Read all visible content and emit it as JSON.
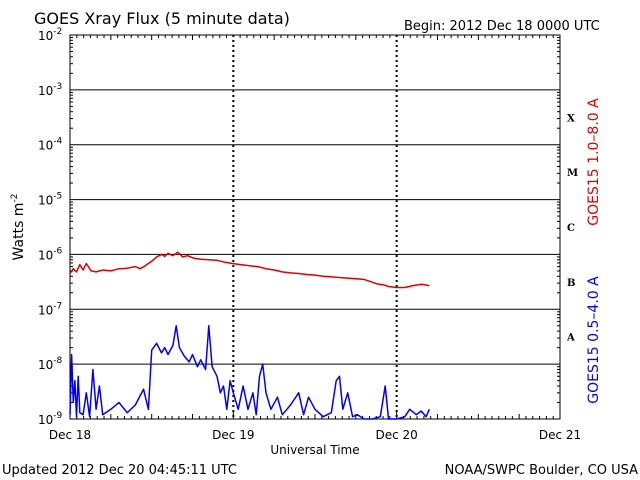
{
  "header": {
    "title": "GOES Xray Flux (5 minute data)",
    "begin": "Begin:  2012 Dec 18 0000 UTC"
  },
  "footer": {
    "updated": "Updated 2012 Dec 20 04:45:11 UTC",
    "credit": "NOAA/SWPC Boulder, CO USA"
  },
  "chart_data": {
    "type": "line",
    "title": "GOES Xray Flux (5 minute data)",
    "xlabel": "Universal Time",
    "ylabel": "Watts m",
    "ylabel_sup": "-2",
    "y_scale": "log",
    "ylim": [
      1e-09,
      0.01
    ],
    "y_ticks": [
      {
        "base": "10",
        "exp": "-2"
      },
      {
        "base": "10",
        "exp": "-3"
      },
      {
        "base": "10",
        "exp": "-4"
      },
      {
        "base": "10",
        "exp": "-5"
      },
      {
        "base": "10",
        "exp": "-6"
      },
      {
        "base": "10",
        "exp": "-7"
      },
      {
        "base": "10",
        "exp": "-8"
      },
      {
        "base": "10",
        "exp": "-9"
      }
    ],
    "x_ticks": [
      "Dec 18",
      "Dec 19",
      "Dec 20",
      "Dec 21"
    ],
    "xlim_days": [
      0,
      3
    ],
    "flare_classes": [
      "X",
      "M",
      "C",
      "B",
      "A"
    ],
    "grid": true,
    "colors": {
      "long": "#e00000",
      "short": "#0000ff",
      "axis": "#000000"
    },
    "series": [
      {
        "name": "GOES15 1.0–8.0 A",
        "color": "#e00000",
        "points": [
          [
            0.0,
            4.5e-07
          ],
          [
            0.02,
            5.5e-07
          ],
          [
            0.04,
            4.8e-07
          ],
          [
            0.06,
            6.5e-07
          ],
          [
            0.08,
            5.2e-07
          ],
          [
            0.1,
            6.8e-07
          ],
          [
            0.13,
            5e-07
          ],
          [
            0.16,
            4.8e-07
          ],
          [
            0.2,
            5.2e-07
          ],
          [
            0.25,
            5e-07
          ],
          [
            0.3,
            5.5e-07
          ],
          [
            0.35,
            5.6e-07
          ],
          [
            0.4,
            6e-07
          ],
          [
            0.43,
            5.5e-07
          ],
          [
            0.46,
            6.2e-07
          ],
          [
            0.5,
            7.5e-07
          ],
          [
            0.53,
            9e-07
          ],
          [
            0.56,
            1e-06
          ],
          [
            0.58,
            9.2e-07
          ],
          [
            0.6,
            1.05e-06
          ],
          [
            0.63,
            9.5e-07
          ],
          [
            0.66,
            1.1e-06
          ],
          [
            0.69,
            9e-07
          ],
          [
            0.72,
            9.5e-07
          ],
          [
            0.76,
            8.5e-07
          ],
          [
            0.8,
            8.2e-07
          ],
          [
            0.85,
            8e-07
          ],
          [
            0.9,
            7.8e-07
          ],
          [
            0.95,
            7.2e-07
          ],
          [
            1.0,
            6.8e-07
          ],
          [
            1.05,
            6.5e-07
          ],
          [
            1.1,
            6.2e-07
          ],
          [
            1.15,
            6e-07
          ],
          [
            1.2,
            5.5e-07
          ],
          [
            1.25,
            5.2e-07
          ],
          [
            1.3,
            4.8e-07
          ],
          [
            1.35,
            4.6e-07
          ],
          [
            1.4,
            4.5e-07
          ],
          [
            1.45,
            4.3e-07
          ],
          [
            1.5,
            4.2e-07
          ],
          [
            1.55,
            4e-07
          ],
          [
            1.6,
            3.9e-07
          ],
          [
            1.65,
            3.8e-07
          ],
          [
            1.7,
            3.7e-07
          ],
          [
            1.75,
            3.6e-07
          ],
          [
            1.8,
            3.5e-07
          ],
          [
            1.84,
            3.2e-07
          ],
          [
            1.88,
            2.9e-07
          ],
          [
            1.92,
            2.8e-07
          ],
          [
            1.95,
            2.6e-07
          ],
          [
            2.0,
            2.5e-07
          ],
          [
            2.05,
            2.5e-07
          ],
          [
            2.1,
            2.7e-07
          ],
          [
            2.15,
            2.85e-07
          ],
          [
            2.2,
            2.7e-07
          ]
        ]
      },
      {
        "name": "GOES15 0.5–4.0 A",
        "color": "#0000ff",
        "points": [
          [
            0.0,
            1.2e-09
          ],
          [
            0.01,
            1.5e-08
          ],
          [
            0.02,
            2e-09
          ],
          [
            0.03,
            5e-09
          ],
          [
            0.04,
            1.1e-09
          ],
          [
            0.05,
            6e-09
          ],
          [
            0.06,
            1.3e-09
          ],
          [
            0.08,
            1.2e-09
          ],
          [
            0.1,
            3e-09
          ],
          [
            0.12,
            1.1e-09
          ],
          [
            0.14,
            8e-09
          ],
          [
            0.16,
            1.5e-09
          ],
          [
            0.18,
            4e-09
          ],
          [
            0.2,
            1.2e-09
          ],
          [
            0.25,
            1.5e-09
          ],
          [
            0.3,
            2e-09
          ],
          [
            0.35,
            1.3e-09
          ],
          [
            0.4,
            1.8e-09
          ],
          [
            0.45,
            3.5e-09
          ],
          [
            0.48,
            1.5e-09
          ],
          [
            0.5,
            1.8e-08
          ],
          [
            0.53,
            2.4e-08
          ],
          [
            0.56,
            1.6e-08
          ],
          [
            0.58,
            2e-08
          ],
          [
            0.6,
            1.5e-08
          ],
          [
            0.63,
            2.2e-08
          ],
          [
            0.65,
            5e-08
          ],
          [
            0.67,
            2e-08
          ],
          [
            0.7,
            1.4e-08
          ],
          [
            0.73,
            1.1e-08
          ],
          [
            0.75,
            1.5e-08
          ],
          [
            0.78,
            9e-09
          ],
          [
            0.8,
            1.2e-08
          ],
          [
            0.83,
            8e-09
          ],
          [
            0.85,
            5e-08
          ],
          [
            0.87,
            9e-09
          ],
          [
            0.9,
            6e-09
          ],
          [
            0.92,
            3e-09
          ],
          [
            0.94,
            4e-09
          ],
          [
            0.96,
            1.5e-09
          ],
          [
            0.98,
            5e-09
          ],
          [
            1.0,
            3e-09
          ],
          [
            1.03,
            1.5e-09
          ],
          [
            1.06,
            4e-09
          ],
          [
            1.09,
            1.5e-09
          ],
          [
            1.12,
            3e-09
          ],
          [
            1.14,
            1.2e-09
          ],
          [
            1.16,
            6e-09
          ],
          [
            1.18,
            1e-08
          ],
          [
            1.2,
            3e-09
          ],
          [
            1.23,
            1.5e-09
          ],
          [
            1.27,
            2.5e-09
          ],
          [
            1.3,
            1.2e-09
          ],
          [
            1.35,
            1.8e-09
          ],
          [
            1.4,
            3e-09
          ],
          [
            1.43,
            1.2e-09
          ],
          [
            1.46,
            2.5e-09
          ],
          [
            1.5,
            1.5e-09
          ],
          [
            1.55,
            1.1e-09
          ],
          [
            1.6,
            1.3e-09
          ],
          [
            1.63,
            5e-09
          ],
          [
            1.65,
            6e-09
          ],
          [
            1.67,
            1.5e-09
          ],
          [
            1.7,
            3e-09
          ],
          [
            1.73,
            1.1e-09
          ],
          [
            1.76,
            1.2e-09
          ],
          [
            1.8,
            1e-09
          ],
          [
            1.85,
            1e-09
          ],
          [
            1.9,
            1.1e-09
          ],
          [
            1.93,
            4e-09
          ],
          [
            1.95,
            1e-09
          ],
          [
            2.0,
            1e-09
          ],
          [
            2.05,
            1.1e-09
          ],
          [
            2.08,
            1.5e-09
          ],
          [
            2.12,
            1.2e-09
          ],
          [
            2.15,
            1.4e-09
          ],
          [
            2.18,
            1.1e-09
          ],
          [
            2.2,
            1.5e-09
          ]
        ]
      }
    ]
  }
}
